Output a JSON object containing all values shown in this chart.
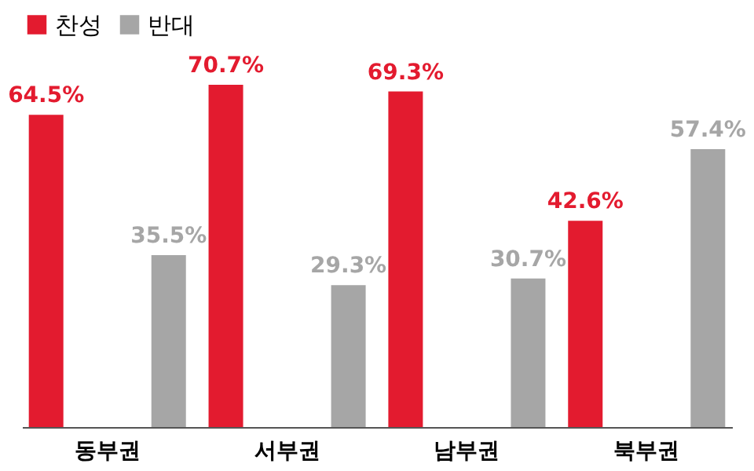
{
  "chart_data": {
    "type": "bar",
    "categories": [
      "동부권",
      "서부권",
      "남부권",
      "북부권"
    ],
    "series": [
      {
        "name": "찬성",
        "color": "#e31b2f",
        "values": [
          64.5,
          70.7,
          69.3,
          42.6
        ],
        "value_labels": [
          "64.5%",
          "70.7%",
          "69.3%",
          "42.6%"
        ]
      },
      {
        "name": "반대",
        "color": "#a6a6a6",
        "values": [
          35.5,
          29.3,
          30.7,
          57.4
        ],
        "value_labels": [
          "35.5%",
          "29.3%",
          "30.7%",
          "57.4%"
        ]
      }
    ],
    "legend": "top left",
    "grid": false
  }
}
